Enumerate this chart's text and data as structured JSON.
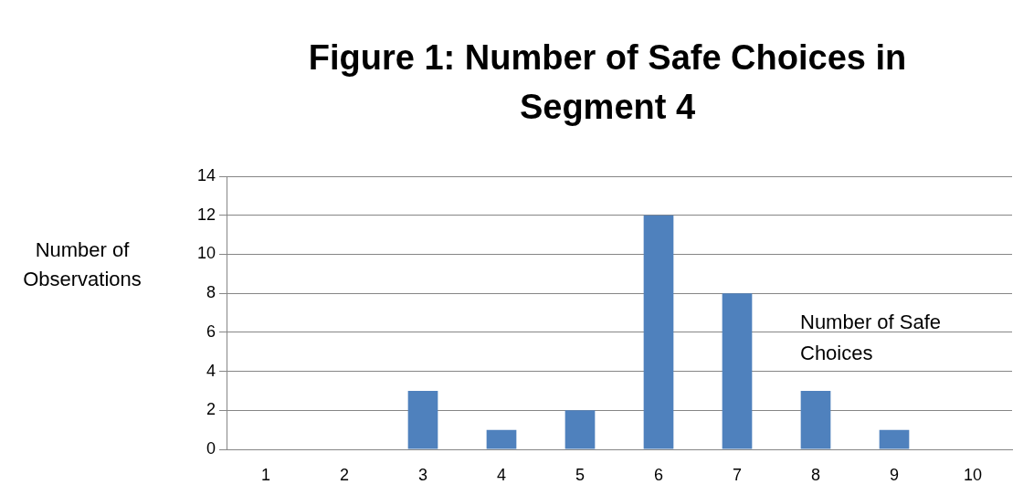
{
  "chart_data": {
    "type": "bar",
    "title": "Figure 1: Number of Safe Choices in Segment 4",
    "xlabel": "Number of Safe Choices",
    "ylabel": "Number of Observations",
    "categories": [
      "1",
      "2",
      "3",
      "4",
      "5",
      "6",
      "7",
      "8",
      "9",
      "10"
    ],
    "values": [
      0,
      0,
      3,
      1,
      2,
      12,
      8,
      3,
      1,
      0
    ],
    "color": "#4f81bd",
    "ylim": [
      0,
      14
    ],
    "yticks": [
      0,
      2,
      4,
      6,
      8,
      10,
      12,
      14
    ],
    "grid": "y",
    "legend": false
  }
}
